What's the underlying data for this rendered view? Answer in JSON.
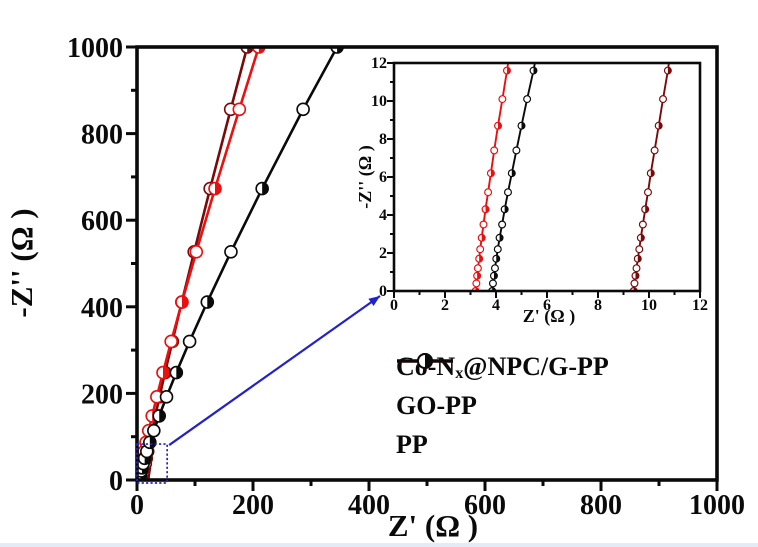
{
  "figure": {
    "background": "#ffffff",
    "accent_blue": "#2222cc"
  },
  "chart_data": {
    "type": "line",
    "description": "Nyquist impedance plot (EIS) with zoomed inset of high-frequency region",
    "xlabel": "Z' (Ω )",
    "ylabel": "-Z'' (Ω )",
    "main": {
      "xlim": [
        0,
        1000
      ],
      "ylim": [
        0,
        1000
      ],
      "xticks": [
        0,
        200,
        400,
        600,
        800,
        1000
      ],
      "yticks": [
        0,
        200,
        400,
        600,
        800,
        1000
      ],
      "minor_xticks": [
        100,
        300,
        500,
        700,
        900
      ],
      "minor_yticks": [
        100,
        300,
        500,
        700,
        900
      ],
      "grid": false
    },
    "inset": {
      "xlabel": "Z' (Ω )",
      "ylabel": "-Z'' (Ω )",
      "xlim": [
        0,
        12
      ],
      "ylim": [
        0,
        12
      ],
      "xticks": [
        0,
        2,
        4,
        6,
        8,
        10,
        12
      ],
      "yticks": [
        0,
        2,
        4,
        6,
        8,
        10,
        12
      ],
      "minor_xticks": [
        1,
        3,
        5,
        7,
        9,
        11
      ],
      "minor_yticks": [
        1,
        3,
        5,
        7,
        9,
        11
      ],
      "grid": false
    },
    "series": [
      {
        "name": "GO-PP",
        "color": "#7a0a0a",
        "points": [
          [
            9.4,
            0
          ],
          [
            9.43,
            0.4
          ],
          [
            9.47,
            0.8
          ],
          [
            9.51,
            1.2
          ],
          [
            9.56,
            1.7
          ],
          [
            9.62,
            2.2
          ],
          [
            9.68,
            2.8
          ],
          [
            9.76,
            3.5
          ],
          [
            9.85,
            4.3
          ],
          [
            9.96,
            5.2
          ],
          [
            10.07,
            6.2
          ],
          [
            10.22,
            7.4
          ],
          [
            10.38,
            8.7
          ],
          [
            10.55,
            10.1
          ],
          [
            10.74,
            11.6
          ],
          [
            10.9,
            13.3
          ],
          [
            11.2,
            15
          ],
          [
            12,
            21
          ],
          [
            12.9,
            28
          ],
          [
            14.4,
            38
          ],
          [
            16.1,
            50
          ],
          [
            18.5,
            66
          ],
          [
            21.7,
            87
          ],
          [
            26,
            114
          ],
          [
            31.5,
            148
          ],
          [
            38.8,
            192
          ],
          [
            48.3,
            248
          ],
          [
            61,
            320
          ],
          [
            77.3,
            411
          ],
          [
            98.6,
            527
          ],
          [
            126.1,
            673
          ],
          [
            161.5,
            856
          ],
          [
            190,
            1000
          ]
        ]
      },
      {
        "name": "Co-Nx@NPC/G-PP",
        "color": "#ed0e0e",
        "points": [
          [
            3.2,
            0
          ],
          [
            3.23,
            0.4
          ],
          [
            3.26,
            0.8
          ],
          [
            3.29,
            1.2
          ],
          [
            3.34,
            1.7
          ],
          [
            3.38,
            2.2
          ],
          [
            3.44,
            2.8
          ],
          [
            3.51,
            3.5
          ],
          [
            3.59,
            4.3
          ],
          [
            3.69,
            5.2
          ],
          [
            3.8,
            6.2
          ],
          [
            3.93,
            7.4
          ],
          [
            4.08,
            8.7
          ],
          [
            4.25,
            10.1
          ],
          [
            4.43,
            11.6
          ],
          [
            4.62,
            13.3
          ],
          [
            4.9,
            15
          ],
          [
            5.6,
            21
          ],
          [
            6.6,
            28
          ],
          [
            8,
            38
          ],
          [
            9.8,
            50
          ],
          [
            12.3,
            66
          ],
          [
            15.7,
            87
          ],
          [
            20.2,
            114
          ],
          [
            26.2,
            148
          ],
          [
            34.2,
            192
          ],
          [
            44.8,
            248
          ],
          [
            58.9,
            320
          ],
          [
            77.6,
            411
          ],
          [
            102.2,
            527
          ],
          [
            134.5,
            673
          ],
          [
            176.4,
            856
          ],
          [
            210,
            1000
          ]
        ]
      },
      {
        "name": "PP",
        "color": "#0a0a0a",
        "points": [
          [
            3.85,
            0
          ],
          [
            3.88,
            0.4
          ],
          [
            3.92,
            0.8
          ],
          [
            3.96,
            1.2
          ],
          [
            4.01,
            1.7
          ],
          [
            4.07,
            2.2
          ],
          [
            4.14,
            2.8
          ],
          [
            4.24,
            3.5
          ],
          [
            4.34,
            4.3
          ],
          [
            4.47,
            5.2
          ],
          [
            4.62,
            6.2
          ],
          [
            4.8,
            7.4
          ],
          [
            5,
            8.7
          ],
          [
            5.22,
            10.1
          ],
          [
            5.47,
            11.6
          ],
          [
            5.7,
            13.3
          ],
          [
            6.1,
            15
          ],
          [
            7.2,
            21
          ],
          [
            8.5,
            28
          ],
          [
            10.6,
            38
          ],
          [
            13.2,
            50
          ],
          [
            16.9,
            66
          ],
          [
            22.1,
            87
          ],
          [
            29,
            114
          ],
          [
            38.3,
            148
          ],
          [
            50.9,
            192
          ],
          [
            67.8,
            248
          ],
          [
            90.7,
            320
          ],
          [
            121.2,
            411
          ],
          [
            162,
            527
          ],
          [
            215.8,
            673
          ],
          [
            286.4,
            856
          ],
          [
            345,
            1000
          ]
        ]
      }
    ],
    "annotation": {
      "zoom_box": {
        "x0": 0,
        "x1": 52,
        "y0": 0,
        "y1": 83
      },
      "arrow_color": "#2222cc",
      "box_color": "#2222cc"
    }
  },
  "legend": {
    "items": [
      {
        "pre": "Co-N",
        "sub": "x",
        "post": "@NPC/G-PP",
        "color": "#ed0e0e"
      },
      {
        "pre": "GO-PP",
        "sub": "",
        "post": "",
        "color": "#7a0a0a"
      },
      {
        "pre": "PP",
        "sub": "",
        "post": "",
        "color": "#0a0a0a"
      }
    ]
  }
}
